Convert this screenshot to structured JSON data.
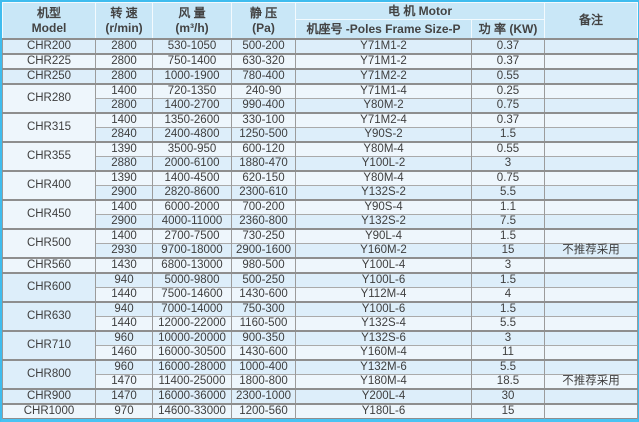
{
  "colors": {
    "accent_cyan": "#3fbcee",
    "header_bg": "#c9e7f7",
    "row_light_blue": "#ddeefa",
    "row_lighter_blue": "#eef6fc",
    "grid_gray": "#9b9b9b",
    "text_gray": "#3e3e3e"
  },
  "headers": {
    "model_zh": "机型",
    "model_en": "Model",
    "speed_zh": "转 速",
    "speed_unit": "(r/min)",
    "airflow_zh": "风 量",
    "airflow_unit": "(m³/h)",
    "pressure_zh": "静 压",
    "pressure_unit": "(Pa)",
    "motor": "电 机 Motor",
    "frame": "机座号 -Poles Frame Size-P",
    "power": "功 率 (KW)",
    "note": "备注"
  },
  "groups": [
    {
      "model": "CHR200",
      "rows": [
        {
          "speed": "2800",
          "airflow": "530-1050",
          "pressure": "500-200",
          "frame": "Y71M1-2",
          "power": "0.37",
          "note": ""
        }
      ]
    },
    {
      "model": "CHR225",
      "rows": [
        {
          "speed": "2800",
          "airflow": "750-1400",
          "pressure": "630-320",
          "frame": "Y71M1-2",
          "power": "0.37",
          "note": ""
        }
      ]
    },
    {
      "model": "CHR250",
      "rows": [
        {
          "speed": "2800",
          "airflow": "1000-1900",
          "pressure": "780-400",
          "frame": "Y71M2-2",
          "power": "0.55",
          "note": ""
        }
      ]
    },
    {
      "model": "CHR280",
      "rows": [
        {
          "speed": "1400",
          "airflow": "720-1350",
          "pressure": "240-90",
          "frame": "Y71M1-4",
          "power": "0.25",
          "note": ""
        },
        {
          "speed": "2800",
          "airflow": "1400-2700",
          "pressure": "990-400",
          "frame": "Y80M-2",
          "power": "0.75",
          "note": ""
        }
      ]
    },
    {
      "model": "CHR315",
      "rows": [
        {
          "speed": "1400",
          "airflow": "1350-2600",
          "pressure": "330-100",
          "frame": "Y71M2-4",
          "power": "0.37",
          "note": ""
        },
        {
          "speed": "2840",
          "airflow": "2400-4800",
          "pressure": "1250-500",
          "frame": "Y90S-2",
          "power": "1.5",
          "note": ""
        }
      ]
    },
    {
      "model": "CHR355",
      "rows": [
        {
          "speed": "1390",
          "airflow": "3500-950",
          "pressure": "600-120",
          "frame": "Y80M-4",
          "power": "0.55",
          "note": ""
        },
        {
          "speed": "2880",
          "airflow": "2000-6100",
          "pressure": "1880-470",
          "frame": "Y100L-2",
          "power": "3",
          "note": ""
        }
      ]
    },
    {
      "model": "CHR400",
      "rows": [
        {
          "speed": "1390",
          "airflow": "1400-4500",
          "pressure": "620-150",
          "frame": "Y80M-4",
          "power": "0.75",
          "note": ""
        },
        {
          "speed": "2900",
          "airflow": "2820-8600",
          "pressure": "2300-610",
          "frame": "Y132S-2",
          "power": "5.5",
          "note": ""
        }
      ]
    },
    {
      "model": "CHR450",
      "rows": [
        {
          "speed": "1400",
          "airflow": "6000-2000",
          "pressure": "700-200",
          "frame": "Y90S-4",
          "power": "1.1",
          "note": ""
        },
        {
          "speed": "2900",
          "airflow": "4000-11000",
          "pressure": "2360-800",
          "frame": "Y132S-2",
          "power": "7.5",
          "note": ""
        }
      ]
    },
    {
      "model": "CHR500",
      "rows": [
        {
          "speed": "1400",
          "airflow": "2700-7500",
          "pressure": "730-250",
          "frame": "Y90L-4",
          "power": "1.5",
          "note": ""
        },
        {
          "speed": "2930",
          "airflow": "9700-18000",
          "pressure": "2900-1600",
          "frame": "Y160M-2",
          "power": "15",
          "note": "不推荐采用"
        }
      ]
    },
    {
      "model": "CHR560",
      "rows": [
        {
          "speed": "1430",
          "airflow": "6800-13000",
          "pressure": "980-500",
          "frame": "Y100L-4",
          "power": "3",
          "note": ""
        }
      ]
    },
    {
      "model": "CHR600",
      "rows": [
        {
          "speed": "940",
          "airflow": "5000-9800",
          "pressure": "500-250",
          "frame": "Y100L-6",
          "power": "1.5",
          "note": ""
        },
        {
          "speed": "1440",
          "airflow": "7500-14600",
          "pressure": "1430-600",
          "frame": "Y112M-4",
          "power": "4",
          "note": ""
        }
      ]
    },
    {
      "model": "CHR630",
      "rows": [
        {
          "speed": "940",
          "airflow": "7000-14000",
          "pressure": "750-300",
          "frame": "Y100L-6",
          "power": "1.5",
          "note": ""
        },
        {
          "speed": "1440",
          "airflow": "12000-22000",
          "pressure": "1160-500",
          "frame": "Y132S-4",
          "power": "5.5",
          "note": ""
        }
      ]
    },
    {
      "model": "CHR710",
      "rows": [
        {
          "speed": "960",
          "airflow": "10000-20000",
          "pressure": "900-350",
          "frame": "Y132S-6",
          "power": "3",
          "note": ""
        },
        {
          "speed": "1460",
          "airflow": "16000-30500",
          "pressure": "1430-600",
          "frame": "Y160M-4",
          "power": "11",
          "note": ""
        }
      ]
    },
    {
      "model": "CHR800",
      "rows": [
        {
          "speed": "960",
          "airflow": "16000-28000",
          "pressure": "1000-400",
          "frame": "Y132M-6",
          "power": "5.5",
          "note": ""
        },
        {
          "speed": "1470",
          "airflow": "11400-25000",
          "pressure": "1800-800",
          "frame": "Y180M-4",
          "power": "18.5",
          "note": "不推荐采用"
        }
      ]
    },
    {
      "model": "CHR900",
      "rows": [
        {
          "speed": "1470",
          "airflow": "16000-36000",
          "pressure": "2300-1000",
          "frame": "Y200L-4",
          "power": "30",
          "note": ""
        }
      ]
    },
    {
      "model": "CHR1000",
      "rows": [
        {
          "speed": "970",
          "airflow": "14600-33000",
          "pressure": "1200-560",
          "frame": "Y180L-6",
          "power": "15",
          "note": ""
        }
      ]
    }
  ]
}
